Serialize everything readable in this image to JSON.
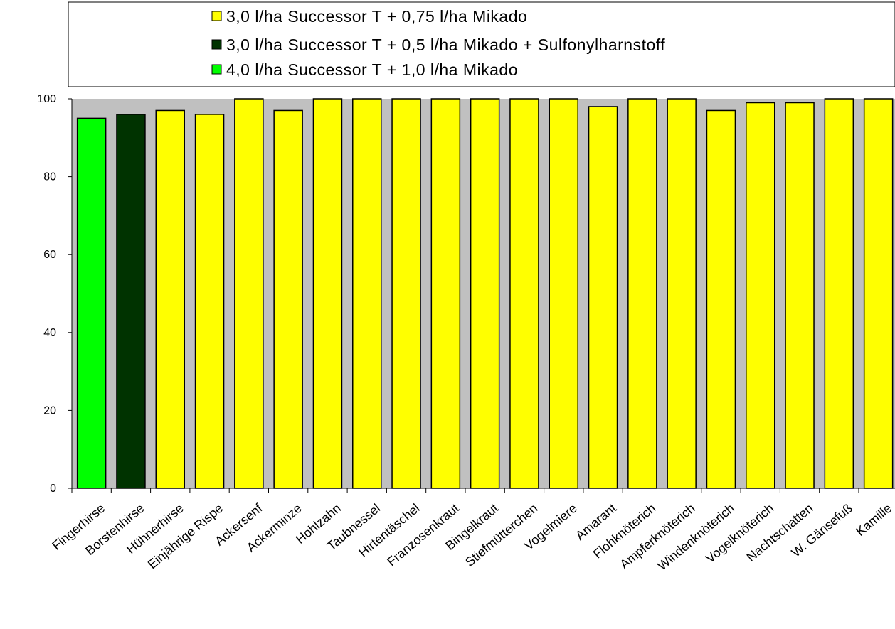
{
  "colors": {
    "plot_background": "#c0c0c0",
    "bar_outline": "#000000"
  },
  "legend": [
    {
      "label": "3,0 l/ha Successor T + 0,75 l/ha Mikado",
      "color": "#ffff00"
    },
    {
      "label": "3,0 l/ha Successor T + 0,5 l/ha Mikado + Sulfonylharnstoff",
      "color": "#003300"
    },
    {
      "label": "4,0 l/ha Successor T + 1,0 l/ha Mikado",
      "color": "#00ff00"
    }
  ],
  "chart_data": {
    "type": "bar",
    "title": "",
    "xlabel": "",
    "ylabel": "",
    "ylim": [
      0,
      100
    ],
    "yticks": [
      "0",
      "20",
      "40",
      "60",
      "80",
      "100"
    ],
    "grid": false,
    "legend_position": "top",
    "categories": [
      "Fingerhirse",
      "Borstenhirse",
      "Hühnerhirse",
      "Einjährige Rispe",
      "Ackersenf",
      "Ackerminze",
      "Hohlzahn",
      "Taubnessel",
      "Hirtentäschel",
      "Franzosenkraut",
      "Bingelkraut",
      "Stiefmütterchen",
      "Vogelmiere",
      "Amarant",
      "Flohknöterich",
      "Ampferknöterich",
      "Windenknöterich",
      "Vogelknöterich",
      "Nachtschatten",
      "W. Gänsefuß",
      "Kamille"
    ],
    "values": [
      95,
      96,
      97,
      96,
      100,
      97,
      100,
      100,
      100,
      100,
      100,
      100,
      100,
      98,
      100,
      100,
      97,
      99,
      99,
      100,
      100
    ],
    "bar_series": [
      2,
      1,
      0,
      0,
      0,
      0,
      0,
      0,
      0,
      0,
      0,
      0,
      0,
      0,
      0,
      0,
      0,
      0,
      0,
      0,
      0
    ]
  }
}
